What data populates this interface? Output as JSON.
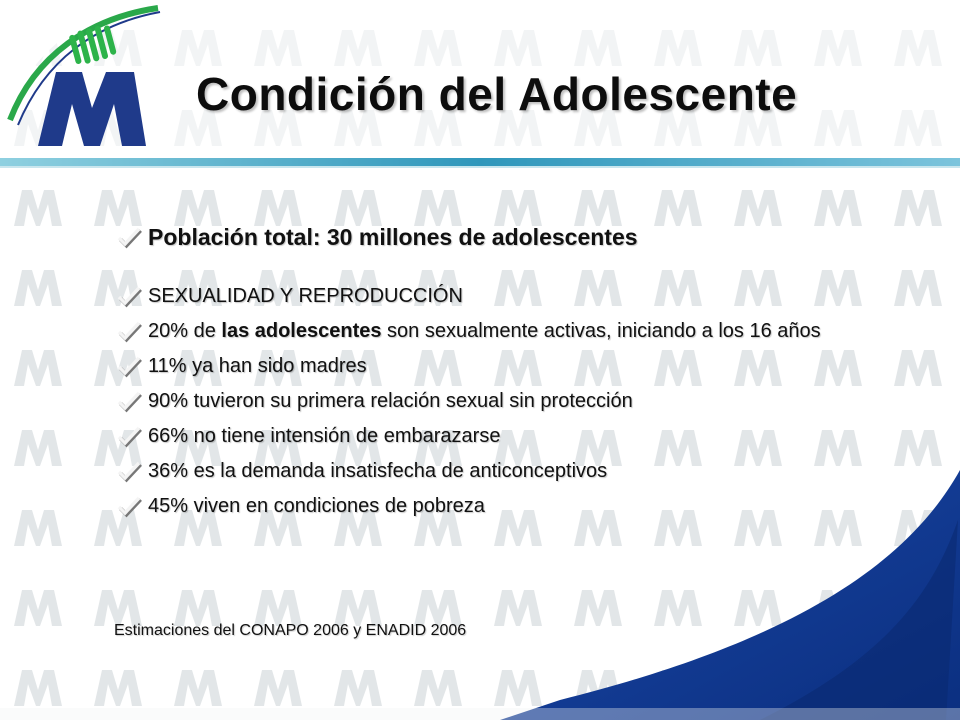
{
  "slide": {
    "title": "Condición del Adolescente",
    "logo": {
      "icon": "institutional-m-logo",
      "letter_color": "#1f3a8a",
      "stripe_color": "#2db34a"
    },
    "colors": {
      "accent_blue": "#163b8f",
      "accent_green": "#22a04a",
      "accent_cyan": "#3fa9c8",
      "watermark": "#dde2e4"
    },
    "headline": "Población total: 30 millones de adolescentes",
    "bullets": [
      {
        "text": "SEXUALIDAD Y REPRODUCCIÓN"
      },
      {
        "pre": "20% de ",
        "bold": "las adolescentes",
        "post": " son sexualmente activas, iniciando a los 16 años"
      },
      {
        "text": "11% ya han sido madres"
      },
      {
        "text": "90% tuvieron su primera relación sexual sin protección"
      },
      {
        "text": "66% no tiene intensión de embarazarse"
      },
      {
        "text": "36% es la demanda insatisfecha de anticonceptivos"
      },
      {
        "text": "45% viven en condiciones de pobreza"
      }
    ],
    "source": "Estimaciones del CONAPO 2006 y ENADID 2006",
    "bullet_icon": "checkmark-icon"
  }
}
